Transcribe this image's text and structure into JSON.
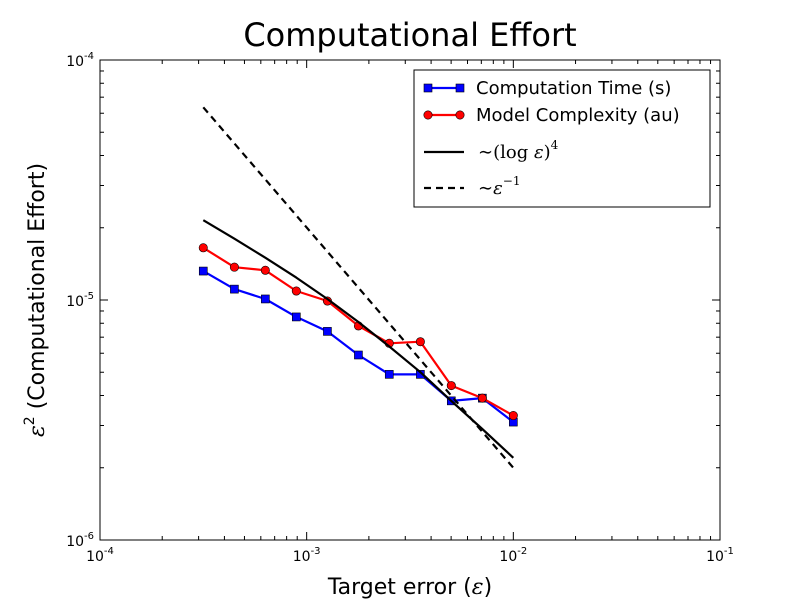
{
  "chart_data": {
    "type": "line",
    "title": "Computational Effort",
    "xlabel": {
      "prefix": "Target error (",
      "symbol": "ε",
      "suffix": ")"
    },
    "ylabel": {
      "symbol": "ε",
      "exp": "2",
      "rest": " (Computational Effort)"
    },
    "xscale": "log",
    "yscale": "log",
    "xlim": [
      0.0001,
      0.1
    ],
    "ylim": [
      1e-06,
      0.0001
    ],
    "x_ticks": [
      {
        "value": 0.0001,
        "base": "10",
        "exp": "-4"
      },
      {
        "value": 0.001,
        "base": "10",
        "exp": "-3"
      },
      {
        "value": 0.01,
        "base": "10",
        "exp": "-2"
      },
      {
        "value": 0.1,
        "base": "10",
        "exp": "-1"
      }
    ],
    "y_ticks": [
      {
        "value": 1e-06,
        "base": "10",
        "exp": "-6"
      },
      {
        "value": 1e-05,
        "base": "10",
        "exp": "-5"
      },
      {
        "value": 0.0001,
        "base": "10",
        "exp": "-4"
      }
    ],
    "grid": false,
    "legend_position": "top-right",
    "series": [
      {
        "name": "Computation Time (s)",
        "color": "#0000ff",
        "marker": "square",
        "linestyle": "solid",
        "x": [
          0.000316,
          0.000447,
          0.000631,
          0.000891,
          0.00126,
          0.00178,
          0.00251,
          0.00355,
          0.00501,
          0.00708,
          0.01
        ],
        "y": [
          1.32e-05,
          1.11e-05,
          1.01e-05,
          8.5e-06,
          7.4e-06,
          5.9e-06,
          4.9e-06,
          4.9e-06,
          3.8e-06,
          3.9e-06,
          3.1e-06
        ]
      },
      {
        "name": "Model Complexity (au)",
        "color": "#ff0000",
        "marker": "circle",
        "linestyle": "solid",
        "x": [
          0.000316,
          0.000447,
          0.000631,
          0.000891,
          0.00126,
          0.00178,
          0.00251,
          0.00355,
          0.00501,
          0.00708,
          0.01
        ],
        "y": [
          1.65e-05,
          1.37e-05,
          1.33e-05,
          1.09e-05,
          9.9e-06,
          7.8e-06,
          6.6e-06,
          6.7e-06,
          4.4e-06,
          3.9e-06,
          3.3e-06
        ]
      },
      {
        "name": "~(log ε)^4",
        "legend_math": {
          "prefix": "∼(log ",
          "symbol": "ε",
          "close": ")",
          "exp": "4"
        },
        "color": "#000000",
        "marker": "none",
        "linestyle": "solid",
        "x": [
          0.000316,
          0.000447,
          0.000631,
          0.000891,
          0.00126,
          0.00178,
          0.00251,
          0.00355,
          0.00501,
          0.00708,
          0.01
        ],
        "y": [
          2.15e-05,
          1.8e-05,
          1.5e-05,
          1.24e-05,
          1.01e-05,
          8.1e-06,
          6.4e-06,
          5e-06,
          3.8e-06,
          2.9e-06,
          2.2e-06
        ]
      },
      {
        "name": "~ε^-1",
        "legend_math": {
          "prefix": "∼",
          "symbol": "ε",
          "close": "",
          "exp": "−1"
        },
        "color": "#000000",
        "marker": "none",
        "linestyle": "dashed",
        "x": [
          0.000316,
          0.01
        ],
        "y": [
          6.35e-05,
          2e-06
        ]
      }
    ]
  }
}
